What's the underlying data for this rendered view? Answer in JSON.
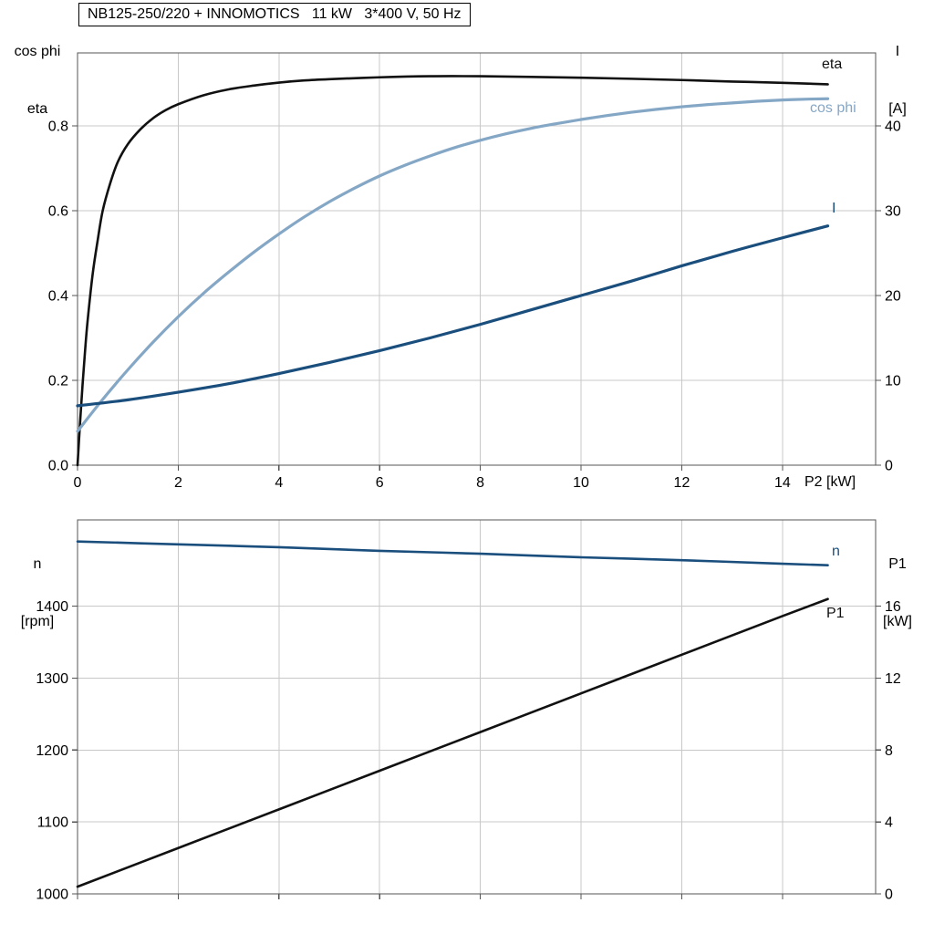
{
  "title": "NB125-250/220 + INNOMOTICS   11 kW   3*400 V, 50 Hz",
  "labels": {
    "top_left_line1": "cos phi",
    "top_left_line2": "eta",
    "top_right_line1": "I",
    "top_right_line2": "[A]",
    "x_axis": "P2 [kW]",
    "curve_eta": "eta",
    "curve_cosphi": "cos phi",
    "curve_current": "I",
    "bottom_left_line1": "n",
    "bottom_left_line2": "[rpm]",
    "bottom_right_line1": "P1",
    "bottom_right_line2": "[kW]",
    "curve_speed": "n",
    "curve_p1": "P1"
  },
  "colors": {
    "black": "#111111",
    "light_blue": "#85a7c6",
    "dark_blue": "#1a4e7d",
    "grid": "#c8c8c8",
    "frame": "#555555",
    "background": "#ffffff"
  },
  "chart_data": [
    {
      "type": "line",
      "title": "NB125-250/220 + INNOMOTICS   11 kW   3*400 V, 50 Hz",
      "x_axis": {
        "label": "P2 [kW]",
        "range": [
          0,
          15.85
        ],
        "tick_values": [
          0,
          2,
          4,
          6,
          8,
          10,
          12,
          14
        ],
        "tick_labels": [
          "0",
          "2",
          "4",
          "6",
          "8",
          "10",
          "12",
          "14"
        ],
        "show_labels": true
      },
      "y_left": {
        "label": "cos phi / eta",
        "range": [
          0,
          0.972
        ],
        "tick_values": [
          0,
          0.2,
          0.4,
          0.6,
          0.8
        ],
        "tick_labels": [
          "0.0",
          "0.2",
          "0.4",
          "0.6",
          "0.8"
        ]
      },
      "y_right": {
        "label": "I [A]",
        "range": [
          0,
          48.6
        ],
        "tick_values": [
          0,
          10,
          20,
          30,
          40
        ],
        "tick_labels": [
          "0",
          "10",
          "20",
          "30",
          "40"
        ]
      },
      "grid": true,
      "series": [
        {
          "name": "eta",
          "axis": "left",
          "color": "black",
          "width": 2.6,
          "points": [
            [
              0,
              0
            ],
            [
              0.05,
              0.1
            ],
            [
              0.1,
              0.19
            ],
            [
              0.15,
              0.27
            ],
            [
              0.2,
              0.34
            ],
            [
              0.3,
              0.45
            ],
            [
              0.4,
              0.53
            ],
            [
              0.5,
              0.6
            ],
            [
              0.65,
              0.665
            ],
            [
              0.8,
              0.715
            ],
            [
              1,
              0.757
            ],
            [
              1.25,
              0.792
            ],
            [
              1.5,
              0.818
            ],
            [
              1.75,
              0.837
            ],
            [
              2,
              0.851
            ],
            [
              2.5,
              0.872
            ],
            [
              3,
              0.886
            ],
            [
              3.5,
              0.895
            ],
            [
              4,
              0.902
            ],
            [
              4.5,
              0.907
            ],
            [
              5,
              0.91
            ],
            [
              6,
              0.9145
            ],
            [
              7,
              0.917
            ],
            [
              8,
              0.917
            ],
            [
              9,
              0.9155
            ],
            [
              10,
              0.9135
            ],
            [
              11,
              0.911
            ],
            [
              12,
              0.908
            ],
            [
              13,
              0.9045
            ],
            [
              14,
              0.9015
            ],
            [
              14.9,
              0.898
            ]
          ]
        },
        {
          "name": "cos phi",
          "axis": "left",
          "color": "light_blue",
          "width": 3.2,
          "points": [
            [
              0,
              0.08
            ],
            [
              0.5,
              0.155
            ],
            [
              1,
              0.225
            ],
            [
              1.5,
              0.29
            ],
            [
              2,
              0.35
            ],
            [
              2.5,
              0.405
            ],
            [
              3,
              0.455
            ],
            [
              3.5,
              0.502
            ],
            [
              4,
              0.545
            ],
            [
              4.5,
              0.585
            ],
            [
              5,
              0.621
            ],
            [
              5.5,
              0.653
            ],
            [
              6,
              0.682
            ],
            [
              6.5,
              0.707
            ],
            [
              7,
              0.729
            ],
            [
              7.5,
              0.749
            ],
            [
              8,
              0.766
            ],
            [
              8.5,
              0.781
            ],
            [
              9,
              0.794
            ],
            [
              9.5,
              0.805
            ],
            [
              10,
              0.815
            ],
            [
              10.5,
              0.824
            ],
            [
              11,
              0.832
            ],
            [
              11.5,
              0.839
            ],
            [
              12,
              0.845
            ],
            [
              12.5,
              0.85
            ],
            [
              13,
              0.854
            ],
            [
              13.5,
              0.858
            ],
            [
              14,
              0.861
            ],
            [
              14.5,
              0.863
            ],
            [
              14.9,
              0.864
            ]
          ]
        },
        {
          "name": "I",
          "axis": "right",
          "color": "dark_blue",
          "width": 3.2,
          "points": [
            [
              0,
              7.0
            ],
            [
              1,
              7.7
            ],
            [
              2,
              8.6
            ],
            [
              3,
              9.6
            ],
            [
              4,
              10.8
            ],
            [
              5,
              12.1
            ],
            [
              6,
              13.5
            ],
            [
              7,
              15.0
            ],
            [
              8,
              16.6
            ],
            [
              9,
              18.3
            ],
            [
              10,
              20.0
            ],
            [
              11,
              21.7
            ],
            [
              12,
              23.5
            ],
            [
              13,
              25.2
            ],
            [
              14,
              26.8
            ],
            [
              14.9,
              28.2
            ]
          ]
        }
      ]
    },
    {
      "type": "line",
      "title": "",
      "x_axis": {
        "label": "",
        "range": [
          0,
          15.85
        ],
        "tick_values": [
          0,
          2,
          4,
          6,
          8,
          10,
          12,
          14
        ],
        "tick_labels": [
          "0",
          "2",
          "4",
          "6",
          "8",
          "10",
          "12",
          "14"
        ],
        "show_labels": false
      },
      "y_left": {
        "label": "n [rpm]",
        "range": [
          1000,
          1520
        ],
        "tick_values": [
          1000,
          1100,
          1200,
          1300,
          1400
        ],
        "tick_labels": [
          "1000",
          "1100",
          "1200",
          "1300",
          "1400"
        ]
      },
      "y_right": {
        "label": "P1 [kW]",
        "range": [
          0,
          20.8
        ],
        "tick_values": [
          0,
          4,
          8,
          12,
          16
        ],
        "tick_labels": [
          "0",
          "4",
          "8",
          "12",
          "16"
        ]
      },
      "grid": true,
      "series": [
        {
          "name": "n",
          "axis": "left",
          "color": "dark_blue",
          "width": 2.6,
          "points": [
            [
              0,
              1490
            ],
            [
              2,
              1486
            ],
            [
              4,
              1482
            ],
            [
              6,
              1477
            ],
            [
              8,
              1473
            ],
            [
              10,
              1468
            ],
            [
              12,
              1464
            ],
            [
              14,
              1459
            ],
            [
              14.9,
              1457
            ]
          ]
        },
        {
          "name": "P1",
          "axis": "right",
          "color": "black",
          "width": 2.6,
          "points": [
            [
              0,
              0.4
            ],
            [
              2,
              2.55
            ],
            [
              4,
              4.7
            ],
            [
              6,
              6.85
            ],
            [
              8,
              9.0
            ],
            [
              10,
              11.15
            ],
            [
              12,
              13.3
            ],
            [
              14,
              15.45
            ],
            [
              14.9,
              16.4
            ]
          ]
        }
      ]
    }
  ]
}
